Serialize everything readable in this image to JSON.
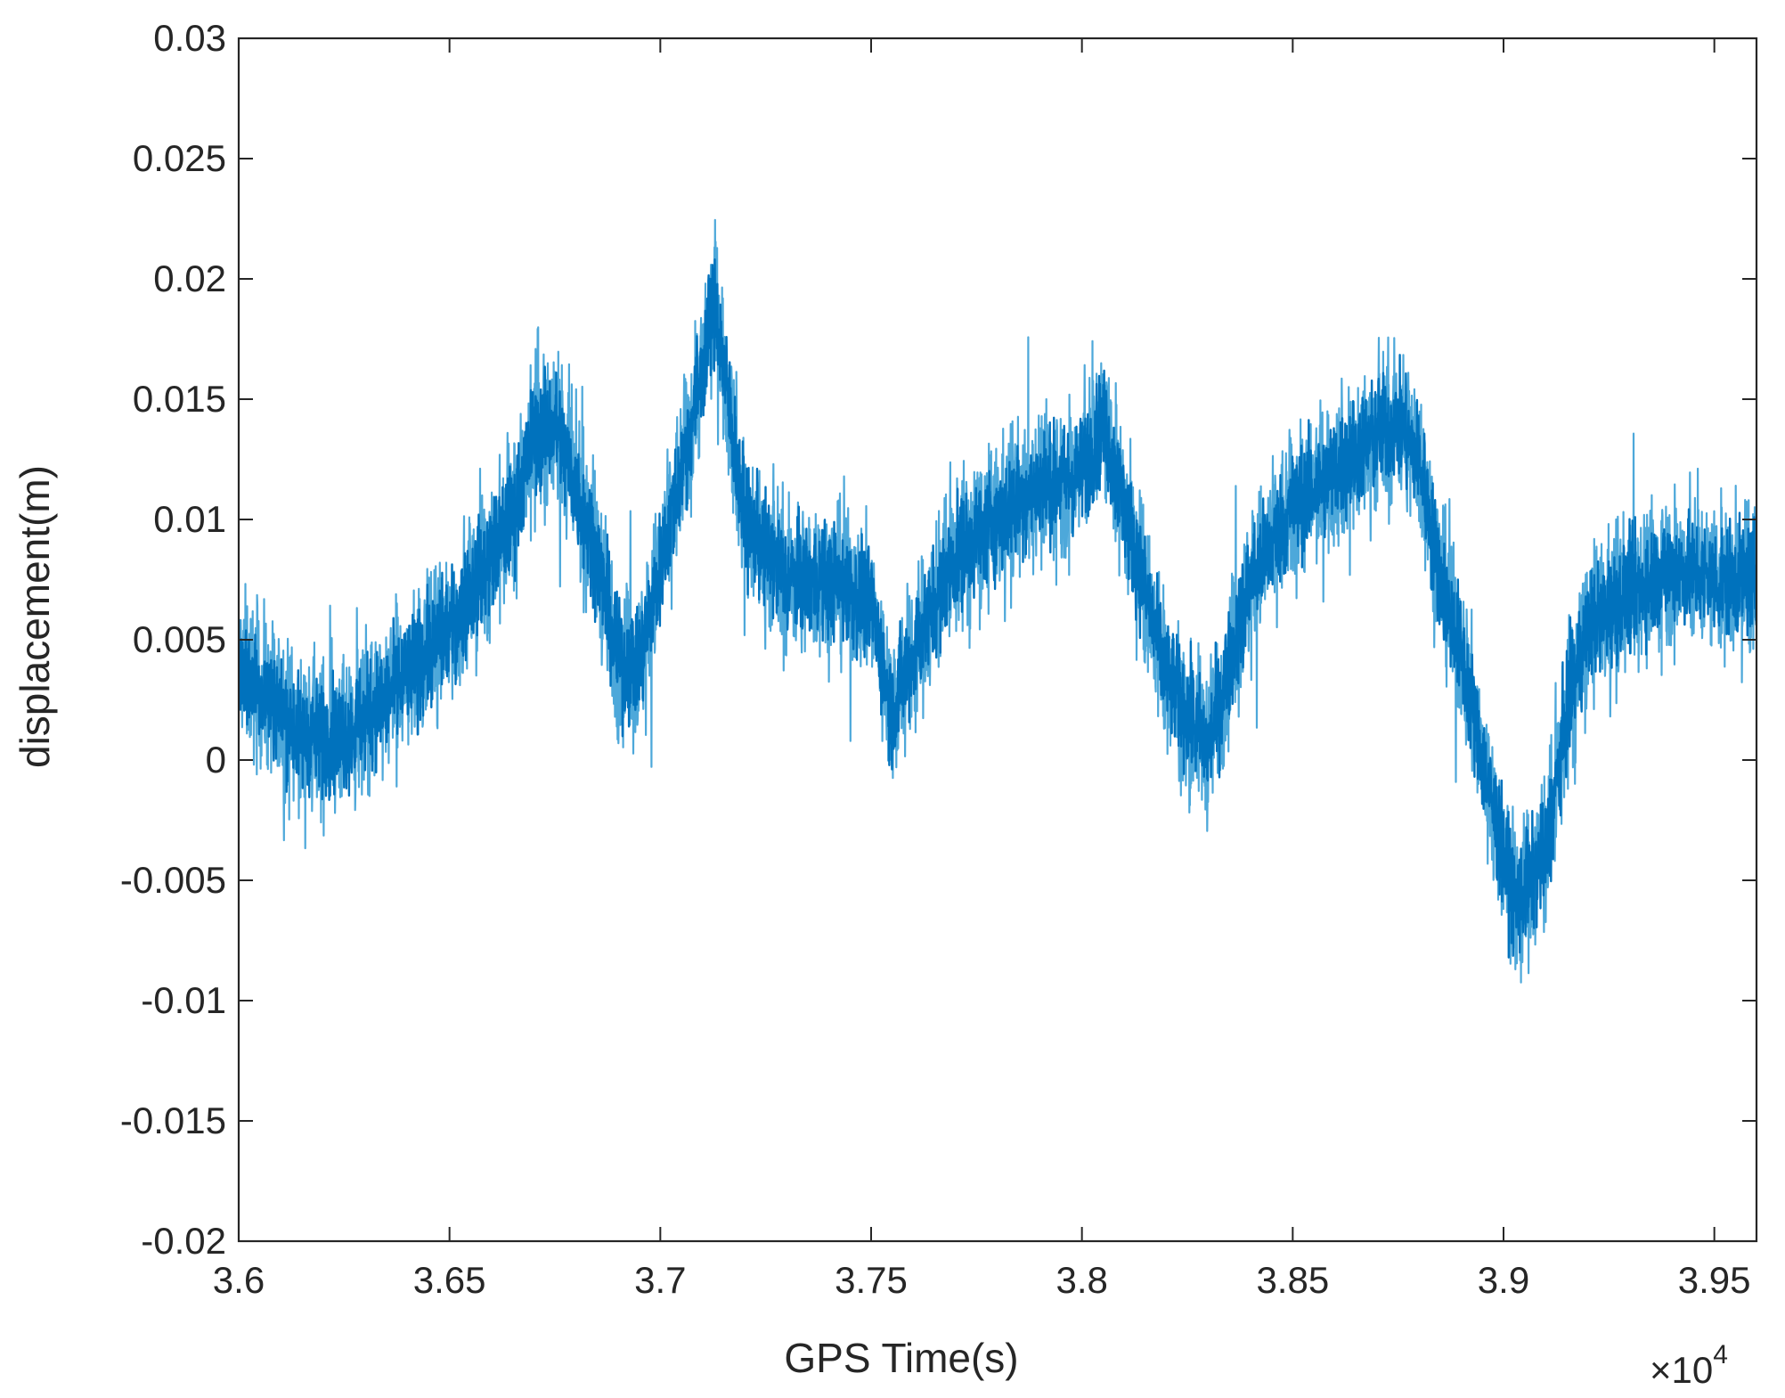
{
  "chart_data": {
    "type": "line",
    "title": "",
    "xlabel": "GPS Time(s)",
    "ylabel": "displacement(m)",
    "x_exponent_label": "×10",
    "x_exponent_power": "4",
    "x_multiplier": 10000,
    "xlim": [
      3.6,
      3.96
    ],
    "ylim": [
      -0.02,
      0.03
    ],
    "xticks": [
      3.6,
      3.65,
      3.7,
      3.75,
      3.8,
      3.85,
      3.9,
      3.95
    ],
    "xtick_labels": [
      "3.6",
      "3.65",
      "3.7",
      "3.75",
      "3.8",
      "3.85",
      "3.9",
      "3.95"
    ],
    "yticks": [
      -0.02,
      -0.015,
      -0.01,
      -0.005,
      0,
      0.005,
      0.01,
      0.015,
      0.02,
      0.025,
      0.03
    ],
    "ytick_labels": [
      "-0.02",
      "-0.015",
      "-0.01",
      "-0.005",
      "0",
      "0.005",
      "0.01",
      "0.015",
      "0.02",
      "0.025",
      "0.03"
    ],
    "grid": false,
    "line_color": "#0072BD",
    "noise_amplitude": 0.0035,
    "series": [
      {
        "x": [
          36000,
          36080,
          36150,
          36250,
          36350,
          36500,
          36650,
          36700,
          36750,
          36850,
          36900,
          36950,
          37050,
          37130,
          37200,
          37300,
          37400,
          37500,
          37550,
          37600,
          37700,
          37800,
          37900,
          37950,
          38000,
          38050,
          38100,
          38200,
          38250,
          38300,
          38400,
          38500,
          38600,
          38700,
          38750,
          38800,
          38850,
          38900,
          38950,
          39000,
          39030,
          39100,
          39150,
          39200,
          39300,
          39400,
          39500,
          39600
        ],
        "y": [
          0.004,
          0.0025,
          0.001,
          0.001,
          0.0025,
          0.0055,
          0.01,
          0.0135,
          0.014,
          0.0085,
          0.004,
          0.004,
          0.012,
          0.019,
          0.01,
          0.0075,
          0.0075,
          0.0065,
          0.002,
          0.0045,
          0.0085,
          0.01,
          0.0115,
          0.0115,
          0.012,
          0.014,
          0.0105,
          0.0035,
          0.002,
          0.0005,
          0.0075,
          0.0105,
          0.012,
          0.0135,
          0.014,
          0.0125,
          0.0075,
          0.0045,
          0.0,
          -0.004,
          -0.006,
          -0.004,
          0.002,
          0.0055,
          0.007,
          0.008,
          0.0075,
          0.0075
        ]
      }
    ],
    "annotations": []
  }
}
